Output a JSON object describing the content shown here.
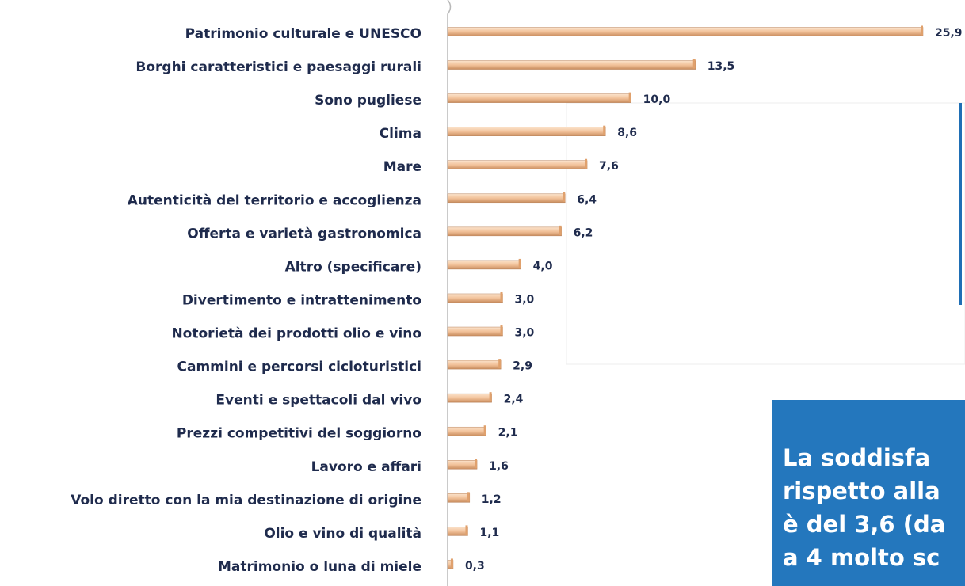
{
  "chart_data": {
    "type": "hbar",
    "categories": [
      "Patrimonio culturale e UNESCO",
      "Borghi caratteristici e paesaggi rurali",
      "Sono pugliese",
      "Clima",
      "Mare",
      "Autenticità  del territorio e accoglienza",
      "Offerta e varietà  gastronomica",
      "Altro (specificare)",
      "Divertimento e intrattenimento",
      "Notorietà  dei prodotti olio e vino",
      "Cammini e percorsi cicloturistici",
      "Eventi e spettacoli dal vivo",
      "Prezzi competitivi del soggiorno",
      "Lavoro e affari",
      "Volo diretto con la mia destinazione di origine",
      "Olio e vino di qualità",
      "Matrimonio o luna di miele"
    ],
    "values": [
      25.9,
      13.5,
      10.0,
      8.6,
      7.6,
      6.4,
      6.2,
      4.0,
      3.0,
      3.0,
      2.9,
      2.4,
      2.1,
      1.6,
      1.2,
      1.1,
      0.3
    ],
    "value_labels": [
      "25,9",
      "13,5",
      "10,0",
      "8,6",
      "7,6",
      "6,4",
      "6,2",
      "4,0",
      "3,0",
      "3,0",
      "2,9",
      "2,4",
      "2,1",
      "1,6",
      "1,2",
      "1,1",
      "0,3"
    ],
    "color": "#f2c29a",
    "annotation": [
      "La soddisfa",
      "rispetto alla",
      "è del 3,6 (da",
      "a 4 molto sc"
    ]
  }
}
